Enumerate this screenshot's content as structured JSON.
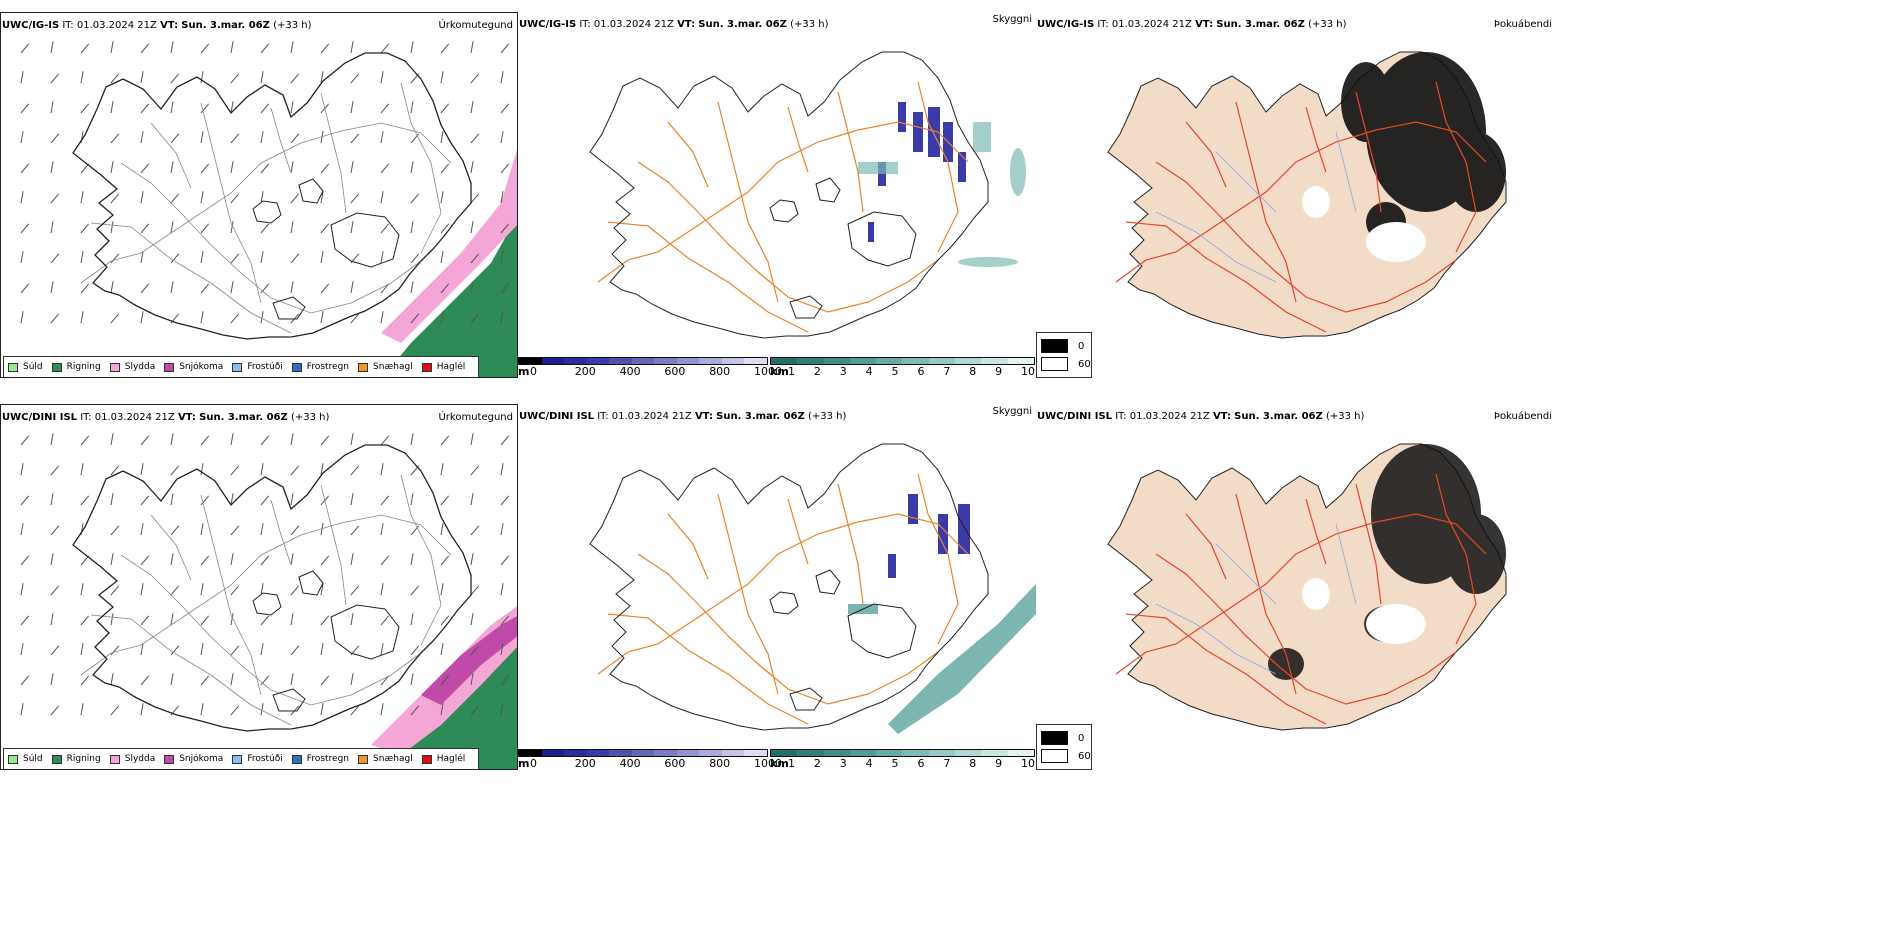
{
  "rows": [
    {
      "model_label": "UWC/IG-IS",
      "it_label": "IT:",
      "it_value": "01.03.2024 21Z",
      "vt_label": "VT:",
      "vt_value": "Sun. 3.mar. 06Z",
      "lead": "(+33 h)"
    },
    {
      "model_label": "UWC/DINI ISL",
      "it_label": "IT:",
      "it_value": "01.03.2024 21Z",
      "vt_label": "VT:",
      "vt_value": "Sun. 3.mar. 06Z",
      "lead": "(+33 h)"
    }
  ],
  "panel_titles": {
    "precip_type": "Úrkomutegund",
    "visibility": "Skyggni",
    "fog": "Þokuábendi"
  },
  "precip_legend": [
    {
      "label": "Súld",
      "color": "#90ee90"
    },
    {
      "label": "Rigning",
      "color": "#2e8b57"
    },
    {
      "label": "Slydda",
      "color": "#f4a6d7"
    },
    {
      "label": "Snjókoma",
      "color": "#c04aa8"
    },
    {
      "label": "Frostúði",
      "color": "#87bdf0"
    },
    {
      "label": "Frostregn",
      "color": "#2f6fc0"
    },
    {
      "label": "Snæhagl",
      "color": "#f0962a"
    },
    {
      "label": "Haglél",
      "color": "#e01010"
    }
  ],
  "ceiling_colorbar": {
    "unit": "m",
    "ticks": [
      "0",
      "200",
      "400",
      "600",
      "800",
      "1000"
    ],
    "colors": [
      "#000000",
      "#1e1e8a",
      "#2d2d9a",
      "#3b3ba8",
      "#5050b0",
      "#6666b8",
      "#7c7cc4",
      "#9494d0",
      "#acacdc",
      "#c4c4e8",
      "#dcdcf2"
    ]
  },
  "visibility_colorbar": {
    "unit": "km",
    "ticks": [
      "1",
      "2",
      "3",
      "4",
      "5",
      "6",
      "7",
      "8",
      "9",
      "10"
    ],
    "colors": [
      "#1f6f6a",
      "#2e7e79",
      "#3f8d88",
      "#519c97",
      "#66aba6",
      "#7dbab5",
      "#96c9c5",
      "#afd8d4",
      "#c9e6e3",
      "#e3f3f1"
    ]
  },
  "fog_legend": [
    {
      "label": "0",
      "color": "#000000"
    },
    {
      "label": "60",
      "color": "#ffffff"
    }
  ],
  "colors": {
    "rain": "#2e8b57",
    "sleet": "#f4a6d7",
    "snow": "#c04aa8",
    "roads_orange": "#e8842a",
    "roads_red": "#e8472a",
    "land_fog": "#f2dcc8",
    "rivers": "#8fa8e8"
  }
}
